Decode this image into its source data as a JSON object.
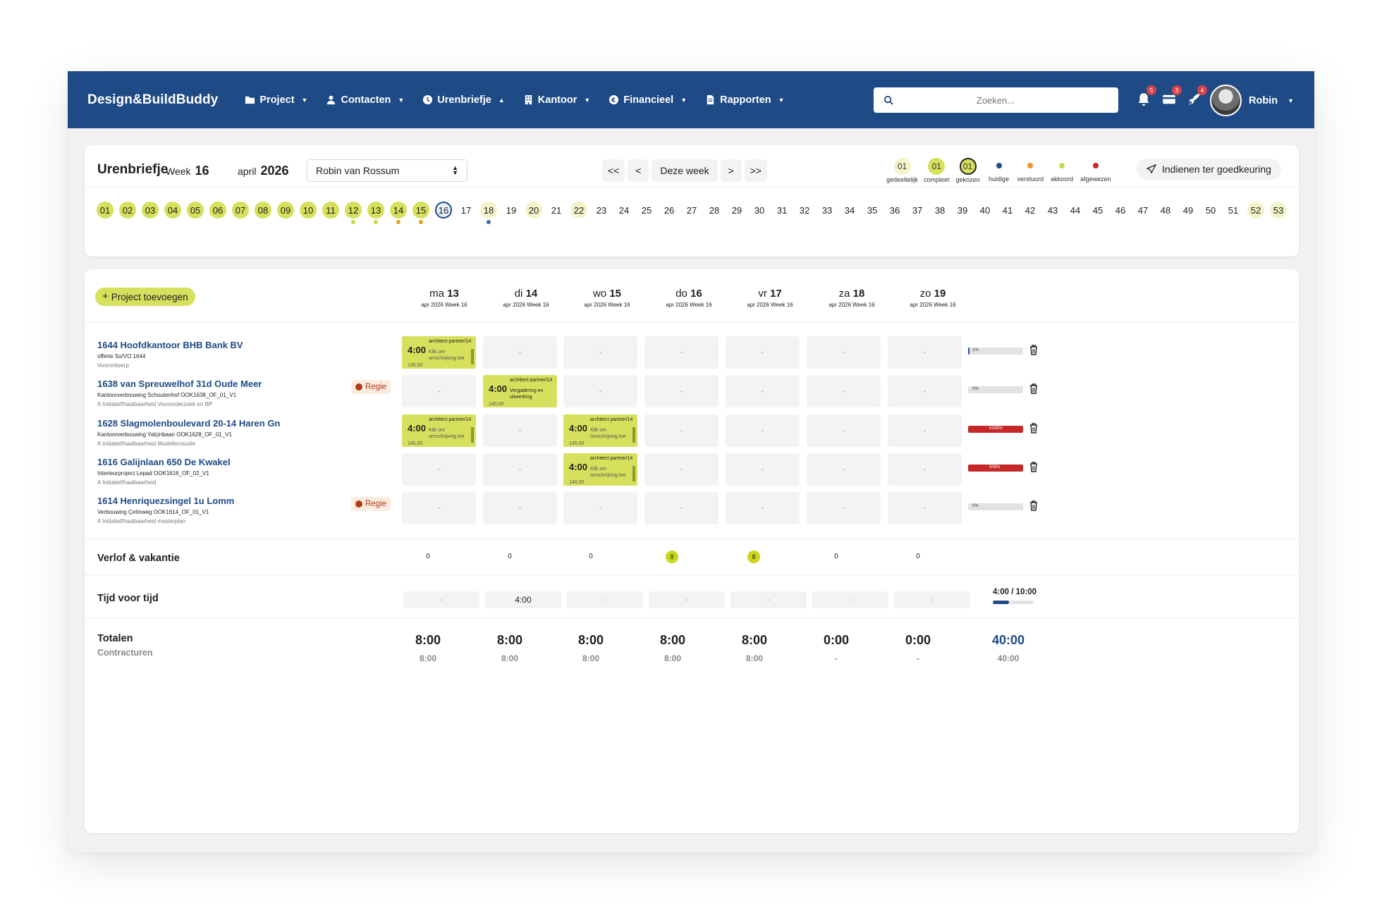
{
  "nav": {
    "brand": "Design&BuildBuddy",
    "menu": [
      {
        "label": "Project",
        "icon": "folder-icon"
      },
      {
        "label": "Contacten",
        "icon": "user-icon"
      },
      {
        "label": "Urenbriefje",
        "icon": "clock-icon"
      },
      {
        "label": "Kantoor",
        "icon": "building-icon"
      },
      {
        "label": "Financieel",
        "icon": "euro-icon"
      },
      {
        "label": "Rapporten",
        "icon": "document-icon"
      }
    ],
    "search_placeholder": "Zoeken...",
    "notif": [
      "5",
      "3",
      "4"
    ],
    "user": "Robin"
  },
  "header": {
    "title": "Urenbriefje",
    "week_label": "Week",
    "week": "16",
    "month": "april",
    "year": "2026",
    "employee": "Robin van Rossum",
    "prev_all": "<<",
    "prev": "<",
    "this_week": "Deze week",
    "next": ">",
    "next_all": ">>",
    "submit": "Indienen ter goedkeuring"
  },
  "legend": [
    {
      "label": "gedeeltelijk",
      "value": "01",
      "kind": "partial"
    },
    {
      "label": "compleet",
      "value": "01",
      "kind": "complete"
    },
    {
      "label": "gekozen",
      "value": "01",
      "kind": "chosen"
    },
    {
      "label": "huidige",
      "color": "#1e4a85"
    },
    {
      "label": "verstuurd",
      "color": "#f0932b"
    },
    {
      "label": "akkoord",
      "color": "#c9d94d"
    },
    {
      "label": "afgewezen",
      "color": "#c62828"
    }
  ],
  "weeks": [
    "01",
    "02",
    "03",
    "04",
    "05",
    "06",
    "07",
    "08",
    "09",
    "10",
    "11",
    "12",
    "13",
    "14",
    "15",
    "16",
    "17",
    "18",
    "19",
    "20",
    "21",
    "22",
    "23",
    "24",
    "25",
    "26",
    "27",
    "28",
    "29",
    "30",
    "31",
    "32",
    "33",
    "34",
    "35",
    "36",
    "37",
    "38",
    "39",
    "40",
    "41",
    "42",
    "43",
    "44",
    "45",
    "46",
    "47",
    "48",
    "49",
    "50",
    "51",
    "52",
    "53"
  ],
  "grid": {
    "add_project": "Project toevoegen",
    "days": [
      {
        "d": "ma",
        "n": "13",
        "sub": "apr 2026 Week 16"
      },
      {
        "d": "di",
        "n": "14",
        "sub": "apr 2026 Week 16"
      },
      {
        "d": "wo",
        "n": "15",
        "sub": "apr 2026 Week 16"
      },
      {
        "d": "do",
        "n": "16",
        "sub": "apr 2026 Week 16"
      },
      {
        "d": "vr",
        "n": "17",
        "sub": "apr 2026 Week 16"
      },
      {
        "d": "za",
        "n": "18",
        "sub": "apr 2026 Week 16"
      },
      {
        "d": "zo",
        "n": "19",
        "sub": "apr 2026 Week 16"
      }
    ],
    "empty": "-",
    "projects": [
      {
        "name": "1644 Hoofdkantoor BHB Bank BV",
        "sub": "offerte So/VO 1644",
        "phase": "Voorontwerp",
        "progress": "1%"
      },
      {
        "name": "1638 van Spreuwelhof 31d Oude Meer",
        "sub": "Kantoorverbouwing Schoutenhof OOK1638_OF_01_V1",
        "phase": "A Initiatief/haalbaarheid Vooronderzoek en BP",
        "badge": "Regie",
        "progress": "0%"
      },
      {
        "name": "1628 Slagmolenboulevard 20-14 Haren Gn",
        "sub": "Kantoorverbouwing Yalçinbaan OOK1628_OF_01_V1",
        "phase": "A Initiatief/haalbaarheid Modellenstudie",
        "progress": "5248%"
      },
      {
        "name": "1616 Galijnlaan 650 De Kwakel",
        "sub": "Interieurproject Lepad OOK1616_OF_02_V1",
        "phase": "A Initiatief/haalbaarheid",
        "progress": "508%"
      },
      {
        "name": "1614 Henriquezsingel 1u Lomm",
        "sub": "Verbouwing Çetinweg OOK1614_OF_01_V1",
        "phase": "A Initiatief/haalbaarheid masterplan",
        "badge": "Regie",
        "progress": "0%"
      }
    ],
    "entries": [
      {
        "time": "4:00",
        "rate": "architect partner/14",
        "desc": "Klik om omschrijving toe te voegen",
        "amount": "145,00"
      },
      {
        "time": "4:00",
        "rate": "architect partner/14",
        "desc": "Vergadering en uitwerking",
        "amount": "140,00"
      },
      {
        "time": "4:00",
        "rate": "architect partner/14",
        "desc": "Klik om omschrijving toe te voegen",
        "amount": "145,00"
      },
      {
        "time": "4:00",
        "rate": "architect partner/14",
        "desc": "Klik om omschrijving toe te voegen",
        "amount": "145,00"
      },
      {
        "time": "4:00",
        "rate": "architect partner/14",
        "desc": "Klik om omschrijving toe te voegen",
        "amount": "140,00"
      }
    ]
  },
  "verlof": {
    "label": "Verlof & vakantie",
    "values": [
      "0",
      "0",
      "0",
      "8",
      "8",
      "0",
      "0"
    ]
  },
  "tvt": {
    "label": "Tijd voor tijd",
    "values": [
      "-",
      "4:00",
      "-",
      "-",
      "-",
      "-",
      "-"
    ],
    "summary": "4:00 / 10:00"
  },
  "totals": {
    "label": "Totalen",
    "sub_label": "Contracturen",
    "values": [
      "8:00",
      "8:00",
      "8:00",
      "8:00",
      "8:00",
      "0:00",
      "0:00"
    ],
    "contract": [
      "8:00",
      "8:00",
      "8:00",
      "8:00",
      "8:00",
      "-",
      "-"
    ],
    "total": "40:00",
    "total_contract": "40:00"
  }
}
